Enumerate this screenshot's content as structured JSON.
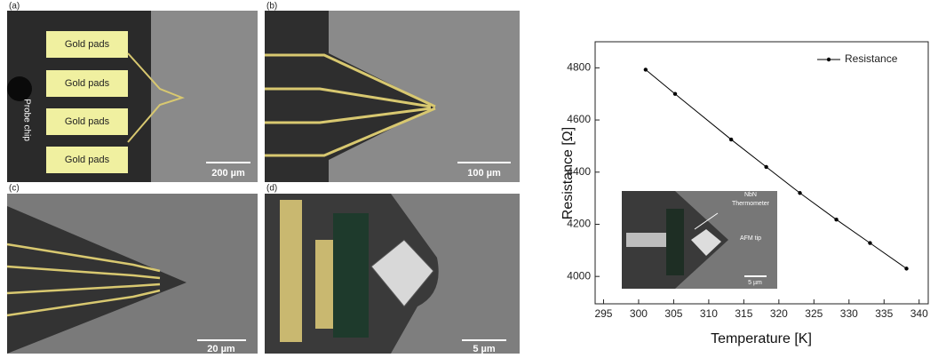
{
  "panels": [
    {
      "label": "(a)",
      "pads": [
        "Gold pads",
        "Gold pads",
        "Gold pads",
        "Gold pads"
      ],
      "chip_label": "Probe chip",
      "scale_bar": "200 µm"
    },
    {
      "label": "(b)",
      "scale_bar": "100 µm"
    },
    {
      "label": "(c)",
      "scale_bar": "20 µm"
    },
    {
      "label": "(d)",
      "scale_bar": "5 µm"
    }
  ],
  "chart_data": {
    "type": "line",
    "x_label": "Temperature [K]",
    "y_label": "Resistance [Ω]",
    "series": [
      {
        "name": "Resistance",
        "color": "#000000",
        "x": [
          301,
          305.2,
          313.2,
          318.2,
          323,
          328.2,
          333,
          338.2
        ],
        "values": [
          4793,
          4700,
          4525,
          4420,
          4320,
          4218,
          4128,
          4030
        ]
      }
    ],
    "xlim": [
      293.8,
      341.3
    ],
    "xticks": [
      295,
      300,
      305,
      310,
      315,
      320,
      325,
      330,
      335,
      340
    ],
    "ylim": [
      3895,
      4900
    ],
    "yticks": [
      4000,
      4200,
      4400,
      4600,
      4800
    ],
    "legend": "upper right",
    "inset": {
      "thermometer_label": [
        "NbN",
        "Thermometer"
      ],
      "tip_label": "AFM tip",
      "scale_bar": "5 µm"
    }
  }
}
